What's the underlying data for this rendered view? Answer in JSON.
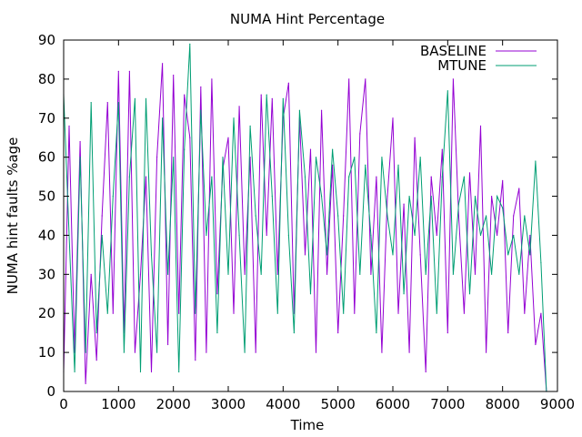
{
  "chart_data": {
    "type": "line",
    "title": "NUMA Hint Percentage",
    "xlabel": "Time",
    "ylabel": "NUMA hint faults %age",
    "xlim": [
      0,
      9000
    ],
    "ylim": [
      0,
      90
    ],
    "xticks": [
      0,
      1000,
      2000,
      3000,
      4000,
      5000,
      6000,
      7000,
      8000,
      9000
    ],
    "yticks": [
      0,
      10,
      20,
      30,
      40,
      50,
      60,
      70,
      80,
      90
    ],
    "grid": false,
    "legend_position": "top-right",
    "x": [
      0,
      100,
      200,
      300,
      400,
      500,
      600,
      700,
      800,
      900,
      1000,
      1100,
      1200,
      1300,
      1400,
      1500,
      1600,
      1700,
      1800,
      1900,
      2000,
      2100,
      2200,
      2300,
      2400,
      2500,
      2600,
      2700,
      2800,
      2900,
      3000,
      3100,
      3200,
      3300,
      3400,
      3500,
      3600,
      3700,
      3800,
      3900,
      4000,
      4100,
      4200,
      4300,
      4400,
      4500,
      4600,
      4700,
      4800,
      4900,
      5000,
      5100,
      5200,
      5300,
      5400,
      5500,
      5600,
      5700,
      5800,
      5900,
      6000,
      6100,
      6200,
      6300,
      6400,
      6500,
      6600,
      6700,
      6800,
      6900,
      7000,
      7100,
      7200,
      7300,
      7400,
      7500,
      7600,
      7700,
      7800,
      7900,
      8000,
      8100,
      8200,
      8300,
      8400,
      8500,
      8600,
      8700,
      8800
    ],
    "series": [
      {
        "name": "BASELINE",
        "color": "#9400d3",
        "values": [
          5,
          68,
          10,
          64,
          2,
          30,
          8,
          45,
          74,
          20,
          82,
          15,
          82,
          10,
          30,
          55,
          5,
          60,
          84,
          12,
          81,
          20,
          76,
          65,
          8,
          78,
          10,
          80,
          25,
          57,
          65,
          20,
          73,
          30,
          60,
          10,
          76,
          40,
          75,
          30,
          70,
          79,
          20,
          70,
          35,
          62,
          10,
          72,
          30,
          58,
          15,
          45,
          80,
          20,
          66,
          80,
          30,
          55,
          10,
          50,
          70,
          20,
          48,
          10,
          65,
          35,
          5,
          55,
          40,
          62,
          15,
          80,
          45,
          20,
          56,
          30,
          68,
          10,
          50,
          40,
          54,
          15,
          45,
          52,
          20,
          40,
          12,
          20,
          0
        ]
      },
      {
        "name": "MTUNE",
        "color": "#009e73",
        "values": [
          76,
          40,
          5,
          60,
          10,
          74,
          15,
          40,
          20,
          50,
          74,
          10,
          55,
          75,
          5,
          75,
          35,
          10,
          70,
          30,
          60,
          5,
          62,
          89,
          20,
          72,
          40,
          55,
          15,
          60,
          30,
          70,
          40,
          10,
          68,
          45,
          30,
          76,
          50,
          20,
          75,
          40,
          15,
          72,
          55,
          25,
          60,
          50,
          35,
          62,
          45,
          20,
          55,
          60,
          30,
          58,
          40,
          15,
          60,
          45,
          35,
          58,
          25,
          50,
          40,
          60,
          30,
          50,
          20,
          55,
          77,
          30,
          48,
          55,
          25,
          50,
          40,
          45,
          30,
          50,
          47,
          35,
          40,
          30,
          45,
          35,
          59,
          33,
          0
        ]
      }
    ]
  }
}
